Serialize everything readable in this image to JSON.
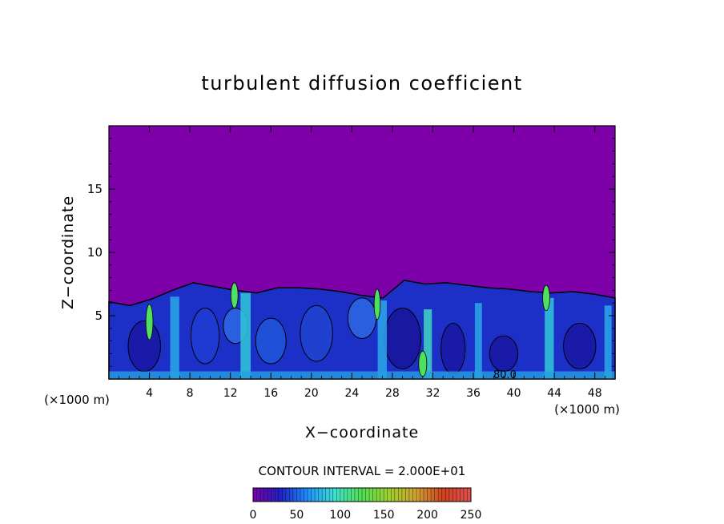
{
  "chart_data": {
    "type": "heatmap",
    "title": "turbulent diffusion coefficient",
    "xlabel": "X−coordinate",
    "ylabel": "Z−coordinate",
    "x_unit_left": "(×1000 m)",
    "x_unit_right": "(×1000 m)",
    "xlim": [
      0,
      50
    ],
    "ylim": [
      0,
      20
    ],
    "x_ticks": [
      4,
      8,
      12,
      16,
      20,
      24,
      28,
      32,
      36,
      40,
      44,
      48
    ],
    "y_ticks": [
      5,
      10,
      15
    ],
    "contour_interval_text": "CONTOUR INTERVAL = 2.000E+01",
    "contour_label": "80.0",
    "colorbar": {
      "min": 0,
      "max": 250,
      "ticks": [
        0,
        50,
        100,
        150,
        200,
        250
      ],
      "colors": [
        "#7a00a8",
        "#2020c0",
        "#1e90ff",
        "#40e0d0",
        "#50e050",
        "#a0d030",
        "#d0a030",
        "#d04020",
        "#e05050"
      ]
    },
    "background_color": "#7d00a8",
    "boundary_layer_top_km": [
      6.1,
      5.8,
      6.3,
      7.0,
      7.6,
      7.3,
      7.0,
      6.8,
      7.2,
      7.2,
      7.1,
      6.9,
      6.6,
      6.4,
      7.8,
      7.5,
      7.6,
      7.4,
      7.2,
      7.1,
      6.9,
      6.8,
      6.9,
      6.7,
      6.4
    ]
  }
}
